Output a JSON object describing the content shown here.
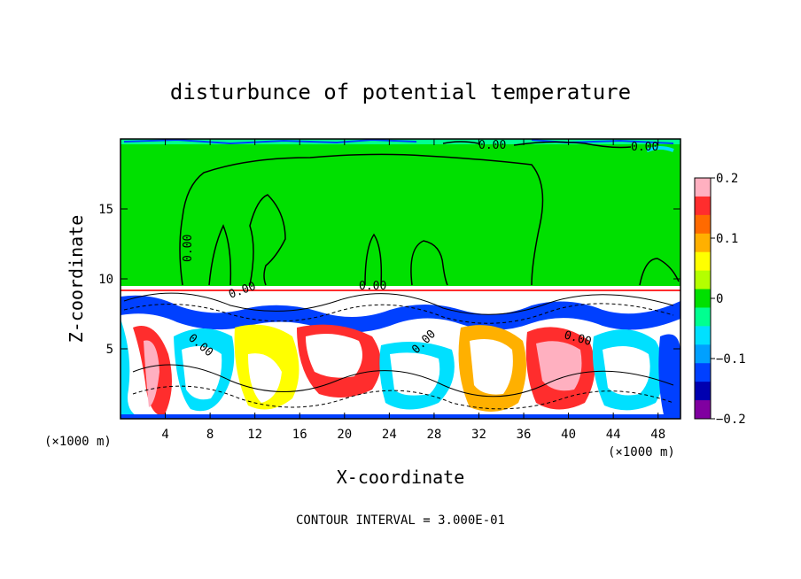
{
  "chart_data": {
    "type": "heatmap",
    "title": "disturbunce of potential temperature",
    "xlabel": "X-coordinate",
    "ylabel": "Z-coordinate",
    "x_unit": "(×1000 m)",
    "x_unit_right": "(×1000 m)",
    "xlim": [
      0,
      50
    ],
    "ylim": [
      0,
      20
    ],
    "x_ticks": [
      4,
      8,
      12,
      16,
      20,
      24,
      28,
      32,
      36,
      40,
      44,
      48
    ],
    "y_ticks": [
      5,
      10,
      15
    ],
    "colorbar": {
      "range": [
        -0.2,
        0.2
      ],
      "ticks": [
        0.2,
        0.1,
        0,
        -0.1,
        -0.2
      ],
      "tick_labels": [
        "0.2",
        "0.1",
        "0",
        "−0.1",
        "−0.2"
      ],
      "colors": [
        "#ffb0c0",
        "#ff2d2d",
        "#ff6a00",
        "#ffb000",
        "#ffff00",
        "#b4ff00",
        "#00e000",
        "#00ff90",
        "#00e0ff",
        "#00a0ff",
        "#0040ff",
        "#0000b0",
        "#8000a0"
      ]
    },
    "contour_labels": [
      "0.00",
      "0.00",
      "0.00",
      "0.00",
      "0.00",
      "0.00",
      "0.00",
      "0.00"
    ],
    "footnote": "CONTOUR INTERVAL = 3.000E-01"
  }
}
